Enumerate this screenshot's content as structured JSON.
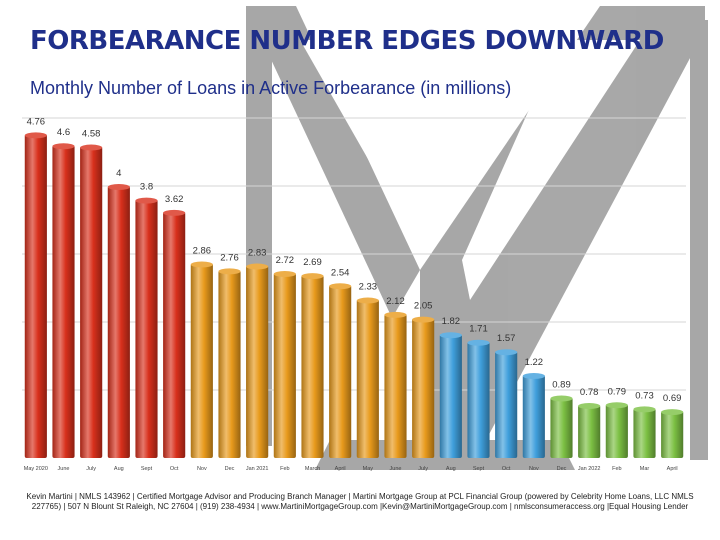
{
  "chart_data": {
    "type": "bar",
    "title": "FORBEARANCE NUMBER EDGES DOWNWARD",
    "subtitle": "Monthly Number of Loans in Active Forbearance (in millions)",
    "categories": [
      "May 2020",
      "June",
      "July",
      "Aug",
      "Sept",
      "Oct",
      "Nov",
      "Dec",
      "Jan 2021",
      "Feb",
      "March",
      "April",
      "May",
      "June",
      "July",
      "Aug",
      "Sept",
      "Oct",
      "Nov",
      "Dec",
      "Jan 2022",
      "Feb",
      "Mar",
      "April"
    ],
    "values": [
      4.76,
      4.6,
      4.58,
      4,
      3.8,
      3.62,
      2.86,
      2.76,
      2.83,
      2.72,
      2.69,
      2.54,
      2.33,
      2.12,
      2.05,
      1.82,
      1.71,
      1.57,
      1.22,
      0.89,
      0.78,
      0.79,
      0.73,
      0.69
    ],
    "value_labels": [
      "4.76",
      "4.6",
      "4.58",
      "4",
      "3.8",
      "3.62",
      "2.86",
      "2.76",
      "2.83",
      "2.72",
      "2.69",
      "2.54",
      "2.33",
      "2.12",
      "2.05",
      "1.82",
      "1.71",
      "1.57",
      "1.22",
      "0.89",
      "0.78",
      "0.79",
      "0.73",
      "0.69"
    ],
    "bar_colors": [
      "#d8301c",
      "#d8301c",
      "#d8301c",
      "#d8301c",
      "#d8301c",
      "#d8301c",
      "#e89a1c",
      "#e89a1c",
      "#e89a1c",
      "#e89a1c",
      "#e89a1c",
      "#e89a1c",
      "#e89a1c",
      "#e89a1c",
      "#e89a1c",
      "#3f9fdc",
      "#3f9fdc",
      "#3f9fdc",
      "#3f9fdc",
      "#7cc043",
      "#7cc043",
      "#7cc043",
      "#7cc043",
      "#7cc043"
    ],
    "ylim": [
      0,
      5
    ],
    "gridlines": [
      1,
      2,
      3,
      4,
      5
    ],
    "grid": true,
    "legend": "none",
    "xlabel": "",
    "ylabel": ""
  },
  "colors": {
    "title": "#1f2f8a",
    "watermark": "#9e9e9e",
    "grid": "#d6d6d6"
  },
  "watermark": {
    "type": "martini-glass-logo",
    "text": "MY"
  },
  "footer": {
    "line1": "Kevin Martini | NMLS 143962 | Certified Mortgage Advisor and Producing Branch Manager | Martini Mortgage Group at PCL Financial Group (powered by Celebrity Home Loans, LLC NMLS",
    "line2": "227765) | 507 N Blount St Raleigh, NC 27604 | (919) 238-4934 | www.MartiniMortgageGroup.com |Kevin@MartiniMortgageGroup.com | nmlsconsumeraccess.org |Equal Housing Lender"
  }
}
